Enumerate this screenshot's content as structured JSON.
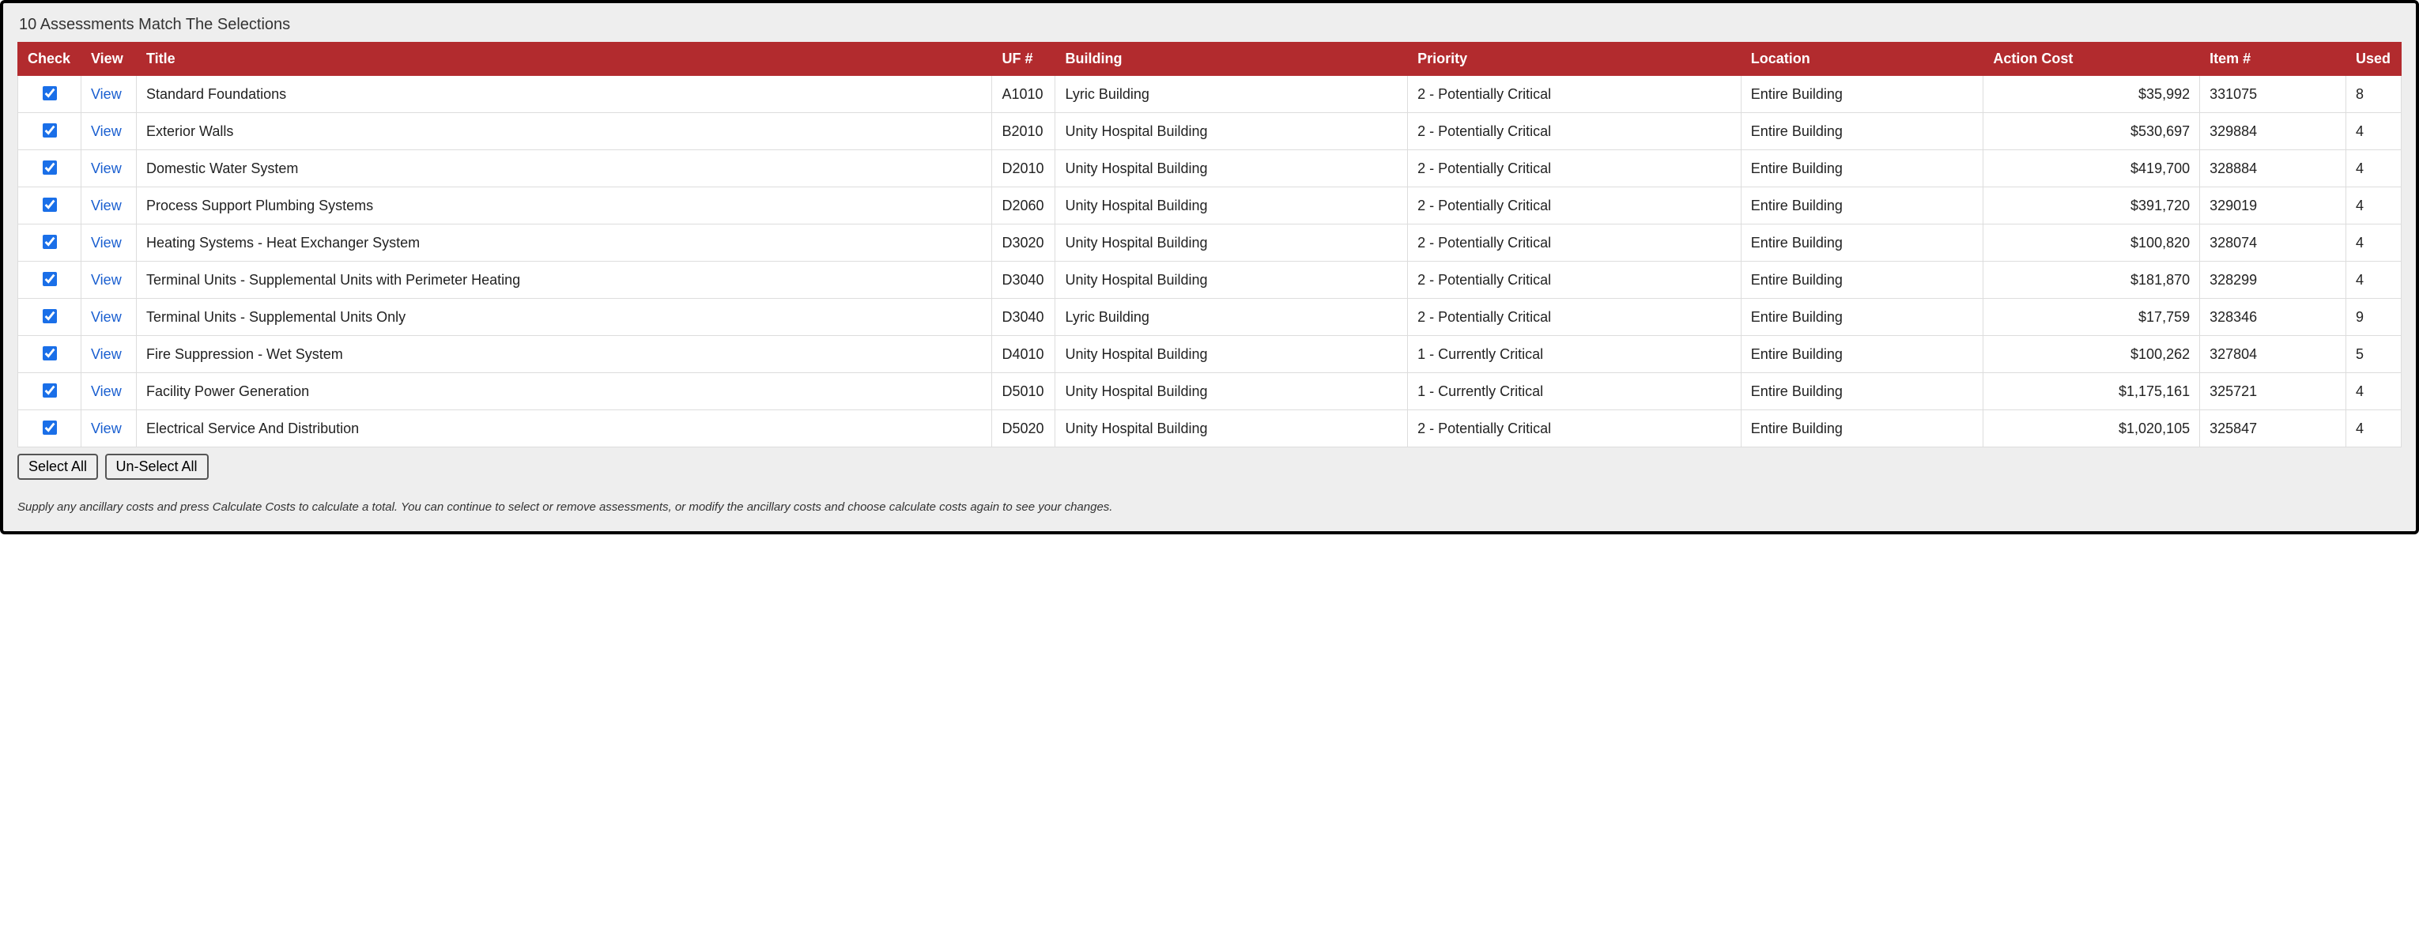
{
  "colors": {
    "header_bg": "#b22b2e",
    "header_fg": "#ffffff",
    "row_border": "#dddddd",
    "panel_bg": "#eeeeee",
    "link": "#1a5fd0",
    "checkbox_accent": "#1a6fe8"
  },
  "title": "10 Assessments Match The Selections",
  "columns": {
    "check": "Check",
    "view": "View",
    "title": "Title",
    "uf": "UF #",
    "building": "Building",
    "priority": "Priority",
    "location": "Location",
    "action_cost": "Action Cost",
    "item": "Item #",
    "used": "Used"
  },
  "view_link_label": "View",
  "rows": [
    {
      "checked": true,
      "title": "Standard Foundations",
      "uf": "A1010",
      "building": "Lyric Building",
      "priority": "2 - Potentially Critical",
      "location": "Entire Building",
      "action_cost": "$35,992",
      "item": "331075",
      "used": "8"
    },
    {
      "checked": true,
      "title": "Exterior Walls",
      "uf": "B2010",
      "building": "Unity Hospital Building",
      "priority": "2 - Potentially Critical",
      "location": "Entire Building",
      "action_cost": "$530,697",
      "item": "329884",
      "used": "4"
    },
    {
      "checked": true,
      "title": "Domestic Water System",
      "uf": "D2010",
      "building": "Unity Hospital Building",
      "priority": "2 - Potentially Critical",
      "location": "Entire Building",
      "action_cost": "$419,700",
      "item": "328884",
      "used": "4"
    },
    {
      "checked": true,
      "title": "Process Support Plumbing Systems",
      "uf": "D2060",
      "building": "Unity Hospital Building",
      "priority": "2 - Potentially Critical",
      "location": "Entire Building",
      "action_cost": "$391,720",
      "item": "329019",
      "used": "4"
    },
    {
      "checked": true,
      "title": "Heating Systems - Heat Exchanger System",
      "uf": "D3020",
      "building": "Unity Hospital Building",
      "priority": "2 - Potentially Critical",
      "location": "Entire Building",
      "action_cost": "$100,820",
      "item": "328074",
      "used": "4"
    },
    {
      "checked": true,
      "title": "Terminal Units - Supplemental Units with Perimeter Heating",
      "uf": "D3040",
      "building": "Unity Hospital Building",
      "priority": "2 - Potentially Critical",
      "location": "Entire Building",
      "action_cost": "$181,870",
      "item": "328299",
      "used": "4"
    },
    {
      "checked": true,
      "title": "Terminal Units - Supplemental Units Only",
      "uf": "D3040",
      "building": "Lyric Building",
      "priority": "2 - Potentially Critical",
      "location": "Entire Building",
      "action_cost": "$17,759",
      "item": "328346",
      "used": "9"
    },
    {
      "checked": true,
      "title": "Fire Suppression - Wet System",
      "uf": "D4010",
      "building": "Unity Hospital Building",
      "priority": "1 - Currently Critical",
      "location": "Entire Building",
      "action_cost": "$100,262",
      "item": "327804",
      "used": "5"
    },
    {
      "checked": true,
      "title": "Facility Power Generation",
      "uf": "D5010",
      "building": "Unity Hospital Building",
      "priority": "1 - Currently Critical",
      "location": "Entire Building",
      "action_cost": "$1,175,161",
      "item": "325721",
      "used": "4"
    },
    {
      "checked": true,
      "title": "Electrical Service And Distribution",
      "uf": "D5020",
      "building": "Unity Hospital Building",
      "priority": "2 - Potentially Critical",
      "location": "Entire Building",
      "action_cost": "$1,020,105",
      "item": "325847",
      "used": "4"
    }
  ],
  "buttons": {
    "select_all": "Select All",
    "unselect_all": "Un-Select All"
  },
  "hint": "Supply any ancillary costs and press Calculate Costs to calculate a total.  You can continue to select or remove assessments, or modify the ancillary costs and choose calculate costs again to see your changes."
}
